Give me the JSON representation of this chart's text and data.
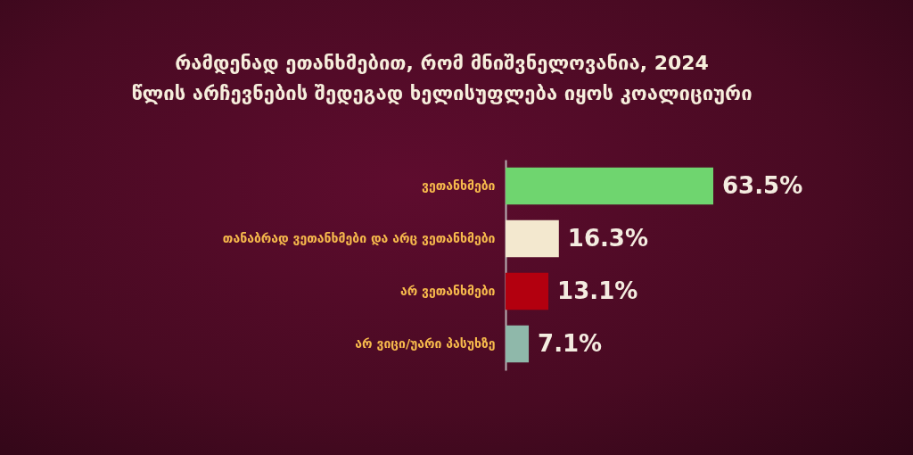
{
  "chart_data": {
    "type": "bar",
    "orientation": "horizontal",
    "title": "რამდენად ეთანხმებით, რომ მნიშვნელოვანია, 2024 წლის არჩევნების შედეგად ხელისუფლება იყოს კოალიციური",
    "categories": [
      "ვეთანხმები",
      "თანაბრად ვეთანხმები და არც ვეთანხმები",
      "არ ვეთანხმები",
      "არ ვიცი/უარი პასუხზე"
    ],
    "values": [
      63.5,
      16.3,
      13.1,
      7.1
    ],
    "colors": [
      "#6fd56f",
      "#f3e8cf",
      "#b3000f",
      "#8fb8aa"
    ],
    "value_labels": [
      "63.5%",
      "16.3%",
      "13.1%",
      "7.1%"
    ]
  }
}
